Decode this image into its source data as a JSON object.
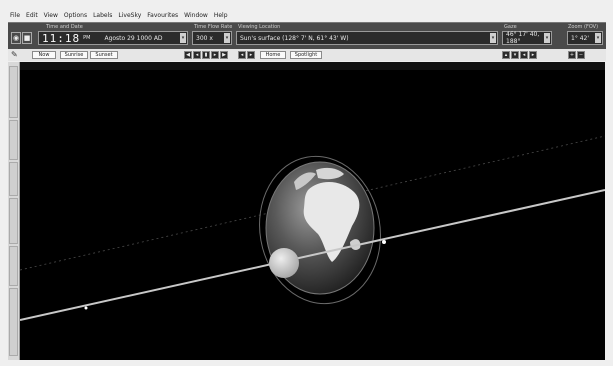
{
  "menu": [
    "File",
    "Edit",
    "View",
    "Options",
    "Labels",
    "LiveSky",
    "Favourites",
    "Window",
    "Help"
  ],
  "toolbar": {
    "time_label": "Time and Date",
    "time_value": "11:18",
    "time_suffix": "PM",
    "date_value": "Agosto 29   1000 AD",
    "timeflow_label": "Time Flow Rate",
    "timeflow_value": "300 x",
    "location_label": "Viewing Location",
    "location_value": "Sun's surface (128° 7' N, 61° 43' W)",
    "gaze_label": "Gaze",
    "gaze_value": "46° 17' 40, 188°",
    "zoom_label": "Zoom (FOV)",
    "zoom_value": "1° 42'"
  },
  "row2": {
    "now_label": "Now",
    "sunrise_label": "Sunrise",
    "sunset_label": "Sunset",
    "home_label": "Home",
    "spotlight_label": "Spotlight"
  },
  "icons": {
    "left_pen": "pencil-icon",
    "camera": "camera-icon"
  }
}
